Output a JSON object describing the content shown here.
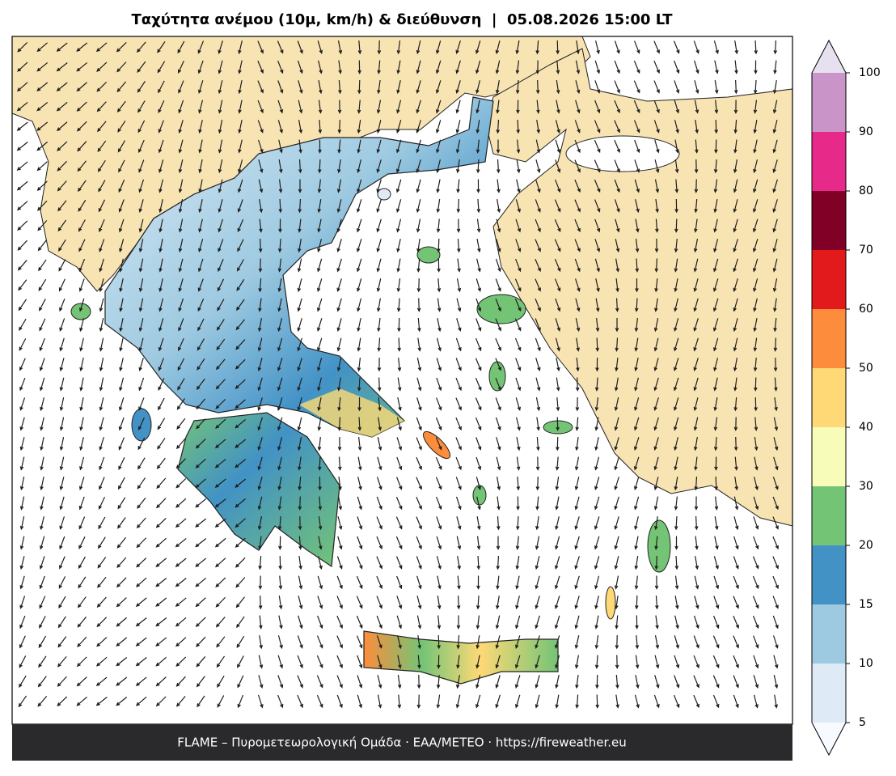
{
  "title": "Ταχύτητα ανέμου (10μ, km/h) & διεύθυνση  |  05.08.2026 15:00 LT",
  "footer": "FLAME – Πυρομετεωρολογική Ομάδα · ΕΑΑ/METEO · https://fireweather.eu",
  "colorbar": {
    "ticks": [
      5,
      10,
      15,
      20,
      30,
      40,
      50,
      60,
      70,
      80,
      90,
      100
    ],
    "colors": [
      "#deebf7",
      "#9ecae1",
      "#4292c6",
      "#74c476",
      "#f7fcb9",
      "#fed976",
      "#fd8d3c",
      "#e31a1c",
      "#800026",
      "#e7298a",
      "#c994c7"
    ],
    "extend_colors": [
      "#f7fbff",
      "#e7e1ef"
    ]
  }
}
